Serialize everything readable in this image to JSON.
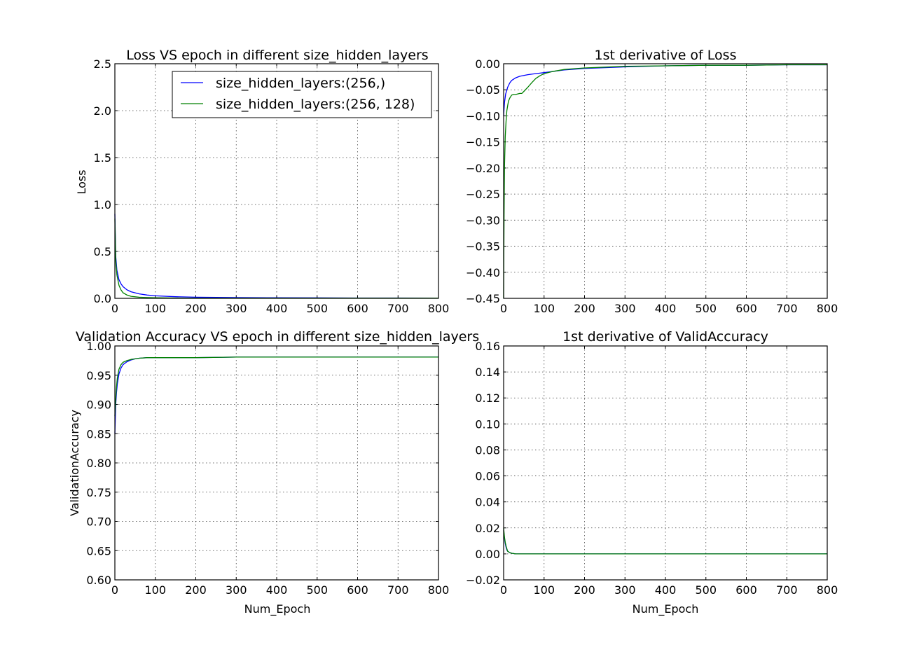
{
  "chart_data": [
    {
      "type": "line",
      "title": "Loss VS epoch in different size_hidden_layers",
      "xlabel": "",
      "ylabel": "Loss",
      "xlim": [
        0,
        800
      ],
      "ylim": [
        0,
        2.5
      ],
      "xticks": [
        "0",
        "100",
        "200",
        "300",
        "400",
        "500",
        "600",
        "700",
        "800"
      ],
      "yticks": [
        "0.0",
        "0.5",
        "1.0",
        "1.5",
        "2.0",
        "2.5"
      ],
      "grid": true,
      "legend": "top-right",
      "series": [
        {
          "name": "size_hidden_layers:(256,)",
          "color": "#0000ff",
          "x": [
            0,
            2,
            5,
            10,
            15,
            20,
            30,
            40,
            60,
            80,
            100,
            150,
            200,
            300,
            400,
            500,
            600,
            700,
            800
          ],
          "y": [
            0.9,
            0.45,
            0.3,
            0.2,
            0.155,
            0.125,
            0.09,
            0.07,
            0.048,
            0.035,
            0.027,
            0.017,
            0.012,
            0.008,
            0.006,
            0.005,
            0.004,
            0.004,
            0.003
          ]
        },
        {
          "name": "size_hidden_layers:(256, 128)",
          "color": "#008000",
          "x": [
            0,
            2,
            5,
            10,
            15,
            20,
            30,
            40,
            60,
            80,
            100,
            150,
            200,
            300,
            400,
            500,
            600,
            700,
            800
          ],
          "y": [
            0.85,
            0.4,
            0.25,
            0.14,
            0.09,
            0.06,
            0.035,
            0.022,
            0.012,
            0.008,
            0.006,
            0.004,
            0.003,
            0.002,
            0.002,
            0.002,
            0.002,
            0.002,
            0.002
          ]
        }
      ]
    },
    {
      "type": "line",
      "title": "1st derivative of Loss",
      "xlabel": "",
      "ylabel": "",
      "xlim": [
        0,
        800
      ],
      "ylim": [
        -0.45,
        0.0
      ],
      "xticks": [
        "0",
        "100",
        "200",
        "300",
        "400",
        "500",
        "600",
        "700",
        "800"
      ],
      "yticks": [
        "0.00",
        "−0.05",
        "−0.10",
        "−0.15",
        "−0.20",
        "−0.25",
        "−0.30",
        "−0.35",
        "−0.40",
        "−0.45"
      ],
      "grid": true,
      "series": [
        {
          "name": "",
          "color": "#0000ff",
          "x": [
            0,
            2,
            5,
            10,
            15,
            20,
            30,
            40,
            60,
            80,
            100,
            150,
            200,
            300,
            400,
            500,
            600,
            700,
            800
          ],
          "y": [
            -0.1,
            -0.075,
            -0.058,
            -0.045,
            -0.037,
            -0.032,
            -0.027,
            -0.024,
            -0.021,
            -0.019,
            -0.017,
            -0.012,
            -0.009,
            -0.006,
            -0.004,
            -0.003,
            -0.003,
            -0.002,
            -0.002
          ]
        },
        {
          "name": "",
          "color": "#008000",
          "x": [
            0,
            1,
            2,
            4,
            6,
            8,
            10,
            12,
            15,
            20,
            25,
            30,
            40,
            45,
            50,
            60,
            70,
            80,
            90,
            100,
            120,
            150,
            200,
            300,
            400,
            500,
            600,
            700,
            800
          ],
          "y": [
            -0.45,
            -0.3,
            -0.2,
            -0.14,
            -0.11,
            -0.09,
            -0.08,
            -0.072,
            -0.066,
            -0.06,
            -0.059,
            -0.059,
            -0.057,
            -0.057,
            -0.053,
            -0.045,
            -0.036,
            -0.028,
            -0.023,
            -0.019,
            -0.015,
            -0.011,
            -0.008,
            -0.005,
            -0.004,
            -0.003,
            -0.003,
            -0.002,
            -0.002
          ]
        }
      ]
    },
    {
      "type": "line",
      "title": "Validation Accuracy VS epoch in different size_hidden_layers",
      "xlabel": "Num_Epoch",
      "ylabel": "ValidationAccuracy",
      "xlim": [
        0,
        800
      ],
      "ylim": [
        0.6,
        1.0
      ],
      "xticks": [
        "0",
        "100",
        "200",
        "300",
        "400",
        "500",
        "600",
        "700",
        "800"
      ],
      "yticks": [
        "0.60",
        "0.65",
        "0.70",
        "0.75",
        "0.80",
        "0.85",
        "0.90",
        "0.95",
        "1.00"
      ],
      "grid": true,
      "series": [
        {
          "name": "",
          "color": "#0000ff",
          "x": [
            0,
            2,
            4,
            6,
            10,
            15,
            20,
            30,
            40,
            50,
            60,
            80,
            100,
            150,
            200,
            300,
            400,
            500,
            600,
            700,
            800
          ],
          "y": [
            0.85,
            0.9,
            0.92,
            0.935,
            0.952,
            0.962,
            0.968,
            0.973,
            0.976,
            0.978,
            0.979,
            0.98,
            0.98,
            0.98,
            0.98,
            0.981,
            0.981,
            0.981,
            0.981,
            0.981,
            0.981
          ]
        },
        {
          "name": "",
          "color": "#008000",
          "x": [
            0,
            2,
            4,
            6,
            10,
            15,
            20,
            30,
            40,
            50,
            60,
            80,
            100,
            150,
            200,
            300,
            400,
            500,
            600,
            700,
            800
          ],
          "y": [
            0.88,
            0.91,
            0.93,
            0.945,
            0.96,
            0.968,
            0.972,
            0.975,
            0.977,
            0.978,
            0.979,
            0.98,
            0.98,
            0.98,
            0.98,
            0.981,
            0.981,
            0.981,
            0.981,
            0.981,
            0.981
          ]
        }
      ]
    },
    {
      "type": "line",
      "title": "1st derivative of ValidAccuracy",
      "xlabel": "Num_Epoch",
      "ylabel": "",
      "xlim": [
        0,
        800
      ],
      "ylim": [
        -0.02,
        0.16
      ],
      "xticks": [
        "0",
        "100",
        "200",
        "300",
        "400",
        "500",
        "600",
        "700",
        "800"
      ],
      "yticks": [
        "−0.02",
        "0.00",
        "0.02",
        "0.04",
        "0.06",
        "0.08",
        "0.10",
        "0.12",
        "0.14",
        "0.16"
      ],
      "grid": true,
      "series": [
        {
          "name": "",
          "color": "#0000ff",
          "x": [
            0,
            2,
            4,
            6,
            8,
            10,
            15,
            20,
            30,
            50,
            100,
            200,
            300,
            400,
            500,
            600,
            700,
            800
          ],
          "y": [
            0.018,
            0.012,
            0.008,
            0.005,
            0.003,
            0.002,
            0.001,
            0.0005,
            0.0,
            0.0,
            0.0,
            0.0,
            0.0,
            0.0,
            0.0,
            0.0,
            0.0,
            0.0
          ]
        },
        {
          "name": "",
          "color": "#008000",
          "x": [
            0,
            2,
            4,
            6,
            8,
            10,
            15,
            20,
            30,
            50,
            100,
            200,
            300,
            400,
            500,
            600,
            700,
            800
          ],
          "y": [
            0.02,
            0.013,
            0.009,
            0.006,
            0.004,
            0.002,
            0.001,
            0.0005,
            0.0,
            0.0,
            0.0,
            0.0,
            0.0,
            0.0,
            0.0,
            0.0,
            0.0,
            0.0
          ]
        }
      ]
    }
  ]
}
